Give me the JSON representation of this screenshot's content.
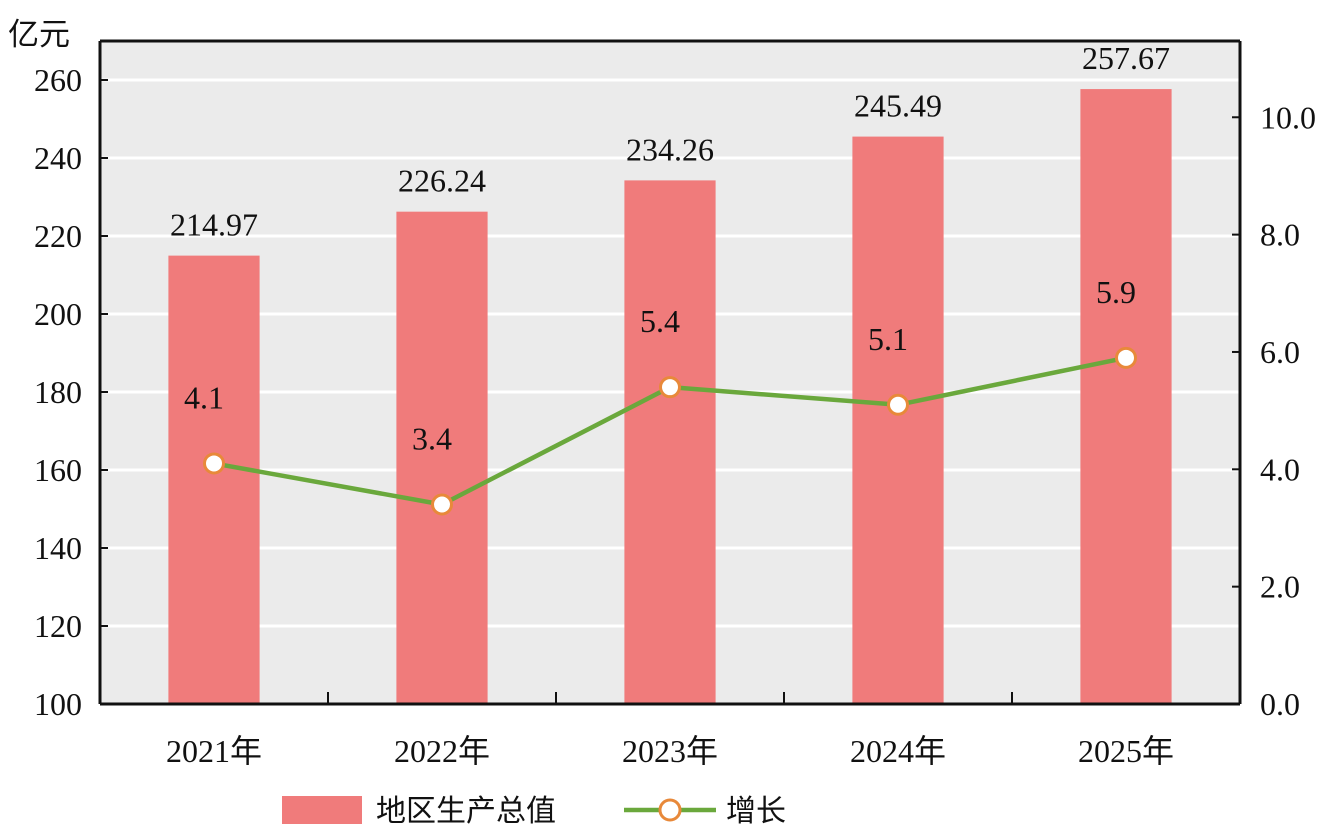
{
  "chart_data": {
    "type": "bar+line",
    "categories": [
      "2021年",
      "2022年",
      "2023年",
      "2024年",
      "2025年"
    ],
    "series": [
      {
        "name": "地区生产总值",
        "type": "bar",
        "axis": "left",
        "values": [
          214.97,
          226.24,
          234.26,
          245.49,
          257.67
        ],
        "labels": [
          "214.97",
          "226.24",
          "234.26",
          "245.49",
          "257.67"
        ],
        "color": "#f07b7b"
      },
      {
        "name": "增长",
        "type": "line",
        "axis": "right",
        "values": [
          4.1,
          3.4,
          5.4,
          5.1,
          5.9
        ],
        "labels": [
          "4.1",
          "3.4",
          "5.4",
          "5.1",
          "5.9"
        ],
        "color": "#6aa83c",
        "marker_edge_color": "#e8893a",
        "marker_fill": "#ffffff"
      }
    ],
    "y_left": {
      "unit": "亿元",
      "min": 100,
      "max": 270,
      "ticks": [
        "100",
        "120",
        "140",
        "160",
        "180",
        "200",
        "220",
        "240",
        "260"
      ]
    },
    "y_right": {
      "min": 0,
      "max": 11.3,
      "ticks": [
        "0.0",
        "2.0",
        "4.0",
        "6.0",
        "8.0",
        "10.0"
      ]
    },
    "grid": true,
    "plot_background": "#ebebeb",
    "grid_color": "#ffffff",
    "legend": {
      "position": "bottom",
      "entries": [
        "地区生产总值",
        "增长"
      ]
    }
  }
}
